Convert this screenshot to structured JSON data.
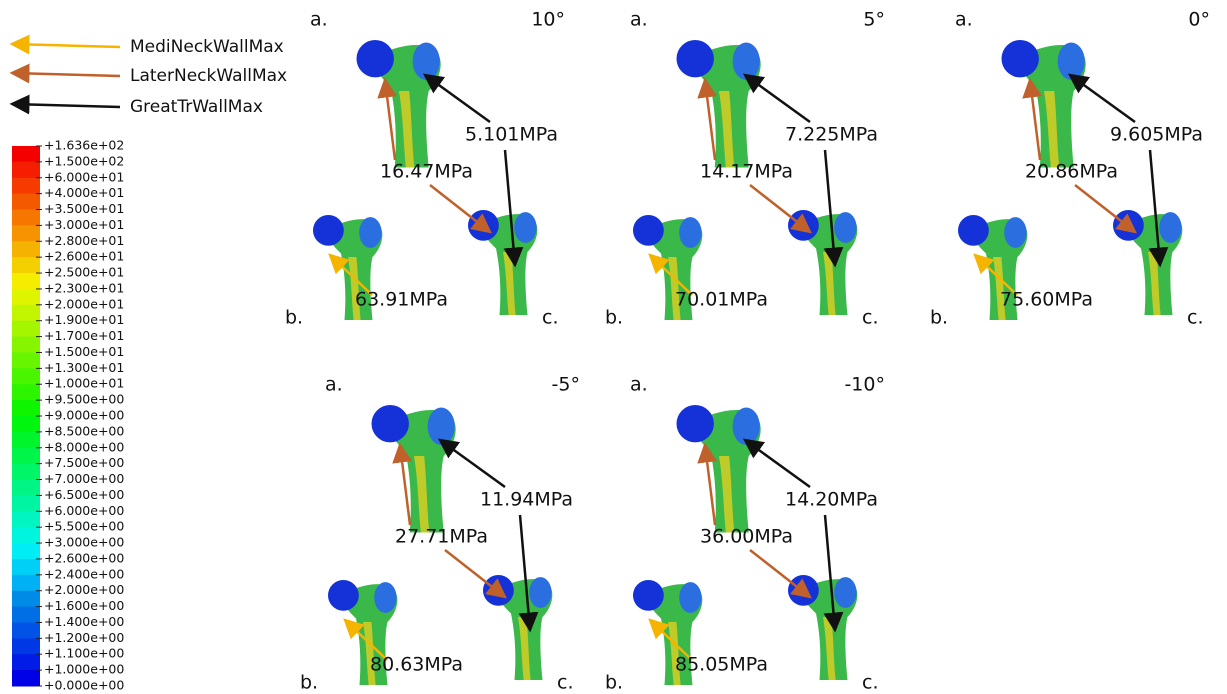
{
  "legend": [
    {
      "label": "MediNeckWallMax"
    },
    {
      "label": "LaterNeckWallMax"
    },
    {
      "label": "GreatTrWallMax"
    }
  ],
  "colorbar": {
    "labels": [
      "+1.636e+02",
      "+1.500e+02",
      "+6.000e+01",
      "+4.000e+01",
      "+3.500e+01",
      "+3.000e+01",
      "+2.800e+01",
      "+2.600e+01",
      "+2.500e+01",
      "+2.300e+01",
      "+2.000e+01",
      "+1.900e+01",
      "+1.700e+01",
      "+1.500e+01",
      "+1.300e+01",
      "+1.000e+01",
      "+9.500e+00",
      "+9.000e+00",
      "+8.500e+00",
      "+8.000e+00",
      "+7.500e+00",
      "+7.000e+00",
      "+6.500e+00",
      "+6.000e+00",
      "+5.500e+00",
      "+3.000e+00",
      "+2.600e+00",
      "+2.400e+00",
      "+2.000e+00",
      "+1.600e+00",
      "+1.400e+00",
      "+1.200e+00",
      "+1.100e+00",
      "+1.000e+00",
      "+0.000e+00"
    ]
  },
  "panels": [
    {
      "angle": "10°",
      "a": "a.",
      "b": "b.",
      "c": "c.",
      "great_tr": "5.101MPa",
      "later_neck": "16.47MPa",
      "medi_neck": "63.91MPa"
    },
    {
      "angle": "5°",
      "a": "a.",
      "b": "b.",
      "c": "c.",
      "great_tr": "7.225MPa",
      "later_neck": "14.17MPa",
      "medi_neck": "70.01MPa"
    },
    {
      "angle": "0°",
      "a": "a.",
      "b": "b.",
      "c": "c.",
      "great_tr": "9.605MPa",
      "later_neck": "20.86MPa",
      "medi_neck": "75.60MPa"
    },
    {
      "angle": "-5°",
      "a": "a.",
      "b": "b.",
      "c": "c.",
      "great_tr": "11.94MPa",
      "later_neck": "27.71MPa",
      "medi_neck": "80.63MPa"
    },
    {
      "angle": "-10°",
      "a": "a.",
      "b": "b.",
      "c": "c.",
      "great_tr": "14.20MPa",
      "later_neck": "36.00MPa",
      "medi_neck": "85.05MPa"
    }
  ]
}
